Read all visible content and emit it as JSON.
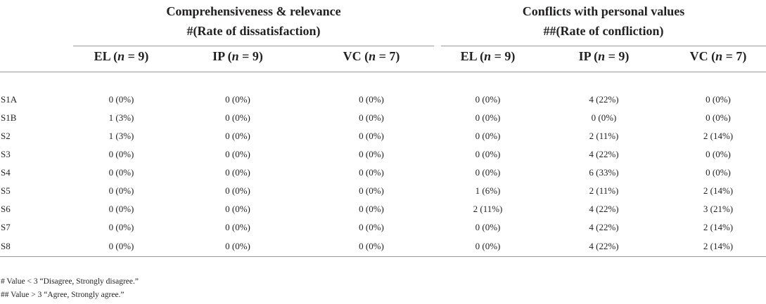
{
  "table": {
    "group_left": {
      "line1": "Comprehensiveness & relevance",
      "line2": "#(Rate of dissatisfaction)"
    },
    "group_right": {
      "line1": "Conflicts with personal values",
      "line2": "##(Rate of confliction)"
    },
    "subheaders": [
      {
        "label": "EL (",
        "n": "n",
        "eq": " = 9)"
      },
      {
        "label": "IP (",
        "n": "n",
        "eq": " = 9)"
      },
      {
        "label": "VC (",
        "n": "n",
        "eq": " = 7)"
      },
      {
        "label": "EL (",
        "n": "n",
        "eq": " = 9)"
      },
      {
        "label": "IP (",
        "n": "n",
        "eq": " = 9)"
      },
      {
        "label": "VC (",
        "n": "n",
        "eq": " = 7)"
      }
    ],
    "rows": [
      {
        "label": "S1A",
        "values": [
          "0 (0%)",
          "0 (0%)",
          "0 (0%)",
          "0 (0%)",
          "4 (22%)",
          "0 (0%)"
        ]
      },
      {
        "label": "S1B",
        "values": [
          "1 (3%)",
          "0 (0%)",
          "0 (0%)",
          "0 (0%)",
          "0 (0%)",
          "0 (0%)"
        ]
      },
      {
        "label": "S2",
        "values": [
          "1 (3%)",
          "0 (0%)",
          "0 (0%)",
          "0 (0%)",
          "2 (11%)",
          "2 (14%)"
        ]
      },
      {
        "label": "S3",
        "values": [
          "0 (0%)",
          "0 (0%)",
          "0 (0%)",
          "0 (0%)",
          "4 (22%)",
          "0 (0%)"
        ]
      },
      {
        "label": "S4",
        "values": [
          "0 (0%)",
          "0 (0%)",
          "0 (0%)",
          "0 (0%)",
          "6 (33%)",
          "0 (0%)"
        ]
      },
      {
        "label": "S5",
        "values": [
          "0 (0%)",
          "0 (0%)",
          "0 (0%)",
          "1 (6%)",
          "2 (11%)",
          "2 (14%)"
        ]
      },
      {
        "label": "S6",
        "values": [
          "0 (0%)",
          "0 (0%)",
          "0 (0%)",
          "2 (11%)",
          "4 (22%)",
          "3 (21%)"
        ]
      },
      {
        "label": "S7",
        "values": [
          "0 (0%)",
          "0 (0%)",
          "0 (0%)",
          "0 (0%)",
          "4 (22%)",
          "2 (14%)"
        ]
      },
      {
        "label": "S8",
        "values": [
          "0 (0%)",
          "0 (0%)",
          "0 (0%)",
          "0 (0%)",
          "4 (22%)",
          "2 (14%)"
        ]
      }
    ]
  },
  "footnotes": [
    "# Value < 3 “Disagree, Strongly disagree.”",
    "## Value > 3 “Agree, Strongly agree.”"
  ]
}
